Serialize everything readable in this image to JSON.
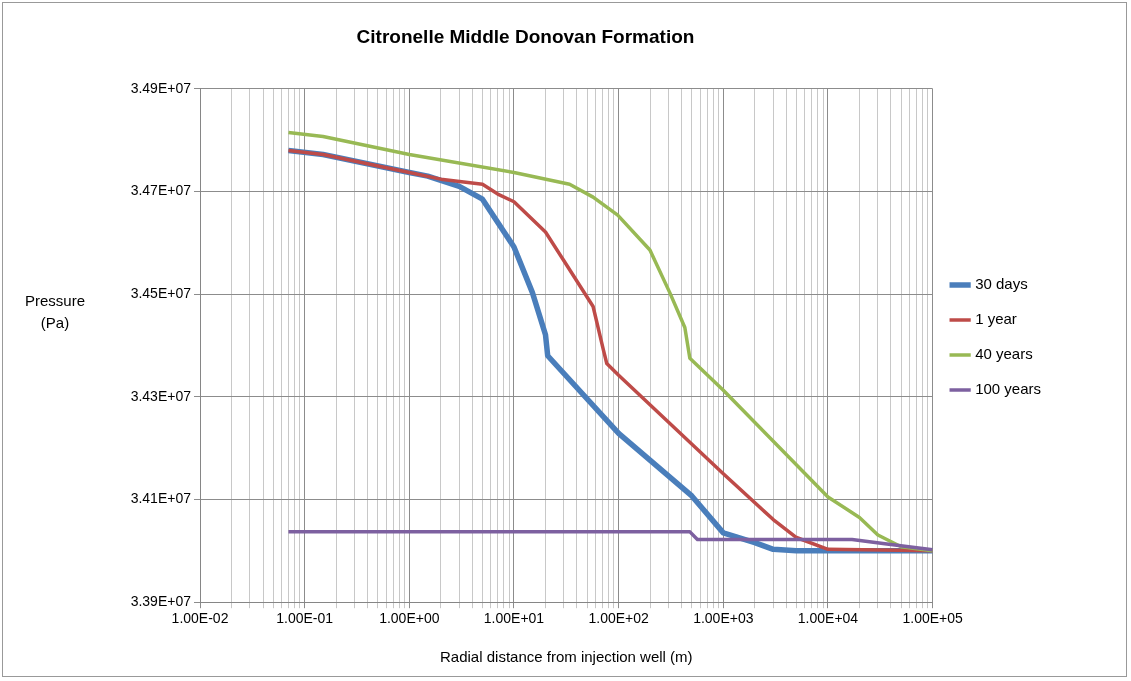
{
  "chart_data": {
    "type": "line",
    "title": "Citronelle Middle Donovan Formation",
    "xlabel": "Radial distance from injection well (m)",
    "ylabel": "Pressure (Pa)",
    "log": "x",
    "grid": true,
    "legend": "right",
    "marker": "none",
    "line_style": "solid",
    "xlim": [
      0.01,
      100000
    ],
    "xticks": [
      {
        "value": 0.01,
        "label": "1.00E-02"
      },
      {
        "value": 0.02,
        "label": null
      },
      {
        "value": 0.03,
        "label": null
      },
      {
        "value": 0.04,
        "label": null
      },
      {
        "value": 0.05,
        "label": null
      },
      {
        "value": 0.06,
        "label": null
      },
      {
        "value": 0.07,
        "label": null
      },
      {
        "value": 0.08,
        "label": null
      },
      {
        "value": 0.09,
        "label": null
      },
      {
        "value": 0.1,
        "label": "1.00E-01"
      },
      {
        "value": 0.2,
        "label": null
      },
      {
        "value": 0.3,
        "label": null
      },
      {
        "value": 0.4,
        "label": null
      },
      {
        "value": 0.5,
        "label": null
      },
      {
        "value": 0.6,
        "label": null
      },
      {
        "value": 0.7,
        "label": null
      },
      {
        "value": 0.8,
        "label": null
      },
      {
        "value": 0.9,
        "label": null
      },
      {
        "value": 1,
        "label": "1.00E+00"
      },
      {
        "value": 2,
        "label": null
      },
      {
        "value": 3,
        "label": null
      },
      {
        "value": 4,
        "label": null
      },
      {
        "value": 5,
        "label": null
      },
      {
        "value": 6,
        "label": null
      },
      {
        "value": 7,
        "label": null
      },
      {
        "value": 8,
        "label": null
      },
      {
        "value": 9,
        "label": null
      },
      {
        "value": 10,
        "label": "1.00E+01"
      },
      {
        "value": 20,
        "label": null
      },
      {
        "value": 30,
        "label": null
      },
      {
        "value": 40,
        "label": null
      },
      {
        "value": 50,
        "label": null
      },
      {
        "value": 60,
        "label": null
      },
      {
        "value": 70,
        "label": null
      },
      {
        "value": 80,
        "label": null
      },
      {
        "value": 90,
        "label": null
      },
      {
        "value": 100,
        "label": "1.00E+02"
      },
      {
        "value": 200,
        "label": null
      },
      {
        "value": 300,
        "label": null
      },
      {
        "value": 400,
        "label": null
      },
      {
        "value": 500,
        "label": null
      },
      {
        "value": 600,
        "label": null
      },
      {
        "value": 700,
        "label": null
      },
      {
        "value": 800,
        "label": null
      },
      {
        "value": 900,
        "label": null
      },
      {
        "value": 1000,
        "label": "1.00E+03"
      },
      {
        "value": 2000,
        "label": null
      },
      {
        "value": 3000,
        "label": null
      },
      {
        "value": 4000,
        "label": null
      },
      {
        "value": 5000,
        "label": null
      },
      {
        "value": 6000,
        "label": null
      },
      {
        "value": 7000,
        "label": null
      },
      {
        "value": 8000,
        "label": null
      },
      {
        "value": 9000,
        "label": null
      },
      {
        "value": 10000,
        "label": "1.00E+04"
      },
      {
        "value": 20000,
        "label": null
      },
      {
        "value": 30000,
        "label": null
      },
      {
        "value": 40000,
        "label": null
      },
      {
        "value": 50000,
        "label": null
      },
      {
        "value": 60000,
        "label": null
      },
      {
        "value": 70000,
        "label": null
      },
      {
        "value": 80000,
        "label": null
      },
      {
        "value": 90000,
        "label": null
      },
      {
        "value": 100000,
        "label": "1.00E+05"
      }
    ],
    "ylim": [
      33900000,
      34900000
    ],
    "yticks": [
      {
        "value": 33900000,
        "label": "3.39E+07"
      },
      {
        "value": 34100000,
        "label": "3.41E+07"
      },
      {
        "value": 34300000,
        "label": "3.43E+07"
      },
      {
        "value": 34500000,
        "label": "3.45E+07"
      },
      {
        "value": 34700000,
        "label": "3.47E+07"
      },
      {
        "value": 34900000,
        "label": "3.49E+07"
      }
    ],
    "series": [
      {
        "name": "30 days",
        "color": "#4a7ebb",
        "x": [
          0.07,
          0.15,
          1,
          1.5,
          3,
          5,
          10,
          15,
          20,
          21,
          100,
          500,
          1000,
          2000,
          3000,
          5000,
          100000
        ],
        "values": [
          34780000,
          34772000,
          34737000,
          34730000,
          34710000,
          34685000,
          34592000,
          34503000,
          34421000,
          34380000,
          34229000,
          34107000,
          34035000,
          34016000,
          34003000,
          34000000,
          34000000
        ]
      },
      {
        "name": "1 year",
        "color": "#be4b48",
        "x": [
          0.07,
          0.15,
          1,
          2,
          5,
          7,
          10,
          20,
          30,
          57,
          71,
          77,
          100,
          1000,
          3000,
          5000,
          10000,
          100000
        ],
        "values": [
          34780000,
          34772000,
          34737000,
          34724000,
          34714000,
          34695000,
          34680000,
          34621000,
          34565000,
          34476000,
          34394000,
          34365000,
          34342000,
          34150000,
          34061000,
          34026000,
          34003000,
          34000000
        ]
      },
      {
        "name": "40 years",
        "color": "#98b954",
        "x": [
          0.07,
          0.15,
          1,
          10,
          34,
          57,
          98,
          199,
          308,
          429,
          479,
          1000,
          10000,
          20000,
          30000,
          50000,
          100000
        ],
        "values": [
          34815000,
          34807000,
          34772000,
          34737000,
          34714000,
          34689000,
          34654000,
          34586000,
          34503000,
          34435000,
          34375000,
          34313000,
          34105000,
          34065000,
          34031000,
          34008000,
          34000000
        ]
      },
      {
        "name": "100 years",
        "color": "#7d60a0",
        "x": [
          0.07,
          480,
          566,
          17000,
          35000,
          100000
        ],
        "values": [
          34037000,
          34037000,
          34022000,
          34022000,
          34014000,
          34002000
        ]
      }
    ]
  }
}
